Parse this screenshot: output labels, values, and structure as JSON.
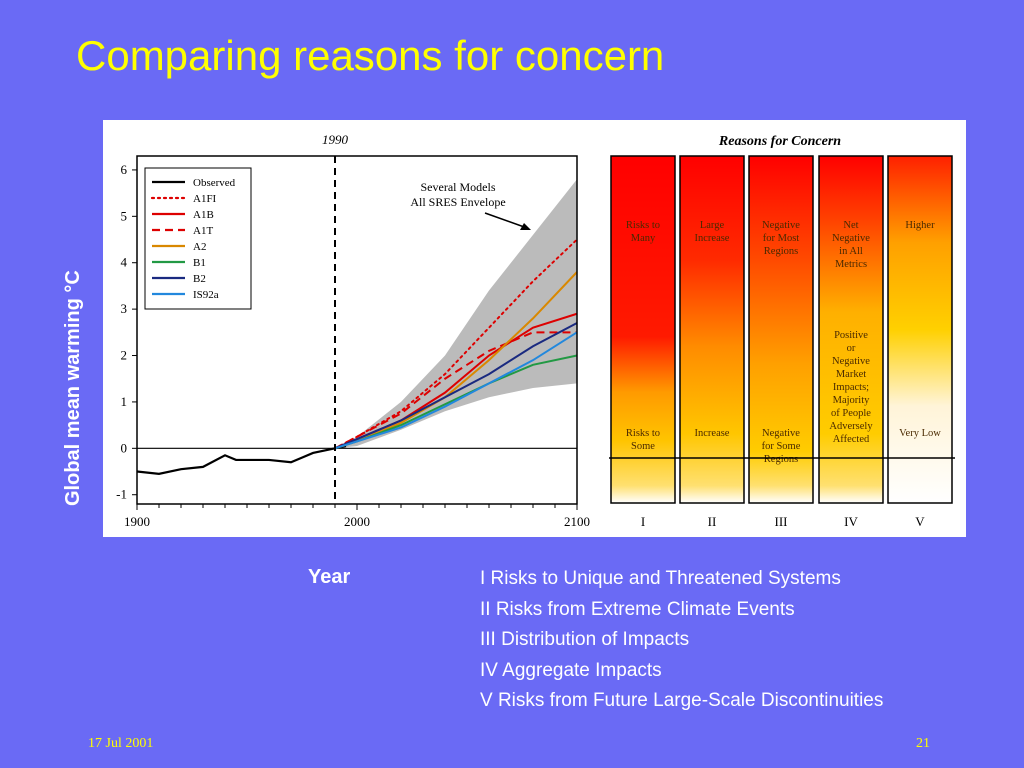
{
  "slide": {
    "title": "Comparing reasons for concern",
    "ylabel": "Global mean warming °C",
    "xlabel": "Year",
    "footer_date": "17 Jul 2001",
    "page_number": "21",
    "reasons_list": [
      "I   Risks to Unique and Threatened Systems",
      "II  Risks from Extreme Climate Events",
      "III Distribution of Impacts",
      "IV Aggregate Impacts",
      "V  Risks from Future Large-Scale Discontinuities"
    ]
  },
  "chart_data": [
    {
      "type": "line",
      "marker_label": "1990",
      "annotation": [
        "Several Models",
        "All SRES Envelope"
      ],
      "xlim": [
        1900,
        2100
      ],
      "ylim": [
        -1.2,
        6.3
      ],
      "x_ticks": [
        "1900",
        "2000",
        "2100"
      ],
      "y_ticks": [
        "-1",
        "0",
        "1",
        "2",
        "3",
        "4",
        "5",
        "6"
      ],
      "envelope": {
        "x": [
          1990,
          2000,
          2020,
          2040,
          2060,
          2080,
          2100
        ],
        "lower": [
          0,
          0.05,
          0.4,
          0.8,
          1.1,
          1.3,
          1.4
        ],
        "upper": [
          0,
          0.25,
          1.0,
          2.0,
          3.4,
          4.6,
          5.8
        ]
      },
      "series": [
        {
          "name": "Observed",
          "color": "#000000",
          "dash": "solid",
          "x": [
            1900,
            1910,
            1920,
            1930,
            1940,
            1945,
            1950,
            1960,
            1970,
            1975,
            1980,
            1990,
            1995
          ],
          "y": [
            -0.5,
            -0.55,
            -0.45,
            -0.4,
            -0.15,
            -0.25,
            -0.25,
            -0.25,
            -0.3,
            -0.2,
            -0.1,
            0.0,
            0.05
          ]
        },
        {
          "name": "A1FI",
          "color": "#dd0000",
          "dash": "dotted",
          "x": [
            1990,
            2000,
            2020,
            2040,
            2060,
            2080,
            2100
          ],
          "y": [
            0,
            0.25,
            0.8,
            1.6,
            2.6,
            3.6,
            4.5
          ]
        },
        {
          "name": "A1B",
          "color": "#dd0000",
          "dash": "solid",
          "x": [
            1990,
            2000,
            2020,
            2040,
            2060,
            2080,
            2100
          ],
          "y": [
            0,
            0.2,
            0.6,
            1.2,
            2.0,
            2.6,
            2.9
          ]
        },
        {
          "name": "A1T",
          "color": "#dd0000",
          "dash": "dashed",
          "x": [
            1990,
            2000,
            2020,
            2040,
            2060,
            2080,
            2100
          ],
          "y": [
            0,
            0.25,
            0.75,
            1.5,
            2.1,
            2.5,
            2.5
          ]
        },
        {
          "name": "A2",
          "color": "#d98800",
          "dash": "solid",
          "x": [
            1990,
            2000,
            2020,
            2040,
            2060,
            2080,
            2100
          ],
          "y": [
            0,
            0.15,
            0.55,
            1.1,
            1.9,
            2.8,
            3.8
          ]
        },
        {
          "name": "B1",
          "color": "#229944",
          "dash": "solid",
          "x": [
            1990,
            2000,
            2020,
            2040,
            2060,
            2080,
            2100
          ],
          "y": [
            0,
            0.15,
            0.5,
            0.95,
            1.4,
            1.8,
            2.0
          ]
        },
        {
          "name": "B2",
          "color": "#1a2a80",
          "dash": "solid",
          "x": [
            1990,
            2000,
            2020,
            2040,
            2060,
            2080,
            2100
          ],
          "y": [
            0,
            0.2,
            0.6,
            1.1,
            1.6,
            2.2,
            2.7
          ]
        },
        {
          "name": "IS92a",
          "color": "#2288dd",
          "dash": "solid",
          "x": [
            1990,
            2000,
            2020,
            2040,
            2060,
            2080,
            2100
          ],
          "y": [
            0,
            0.15,
            0.45,
            0.9,
            1.4,
            1.9,
            2.5
          ]
        }
      ]
    },
    {
      "type": "table",
      "title": "Reasons for Concern",
      "columns": [
        {
          "numeral": "I",
          "high": "Risks to Many",
          "mid": "",
          "low": "Risks to Some"
        },
        {
          "numeral": "II",
          "high": "Large Increase",
          "mid": "",
          "low": "Increase"
        },
        {
          "numeral": "III",
          "high": "Negative for Most Regions",
          "mid": "",
          "low": "Negative for Some Regions"
        },
        {
          "numeral": "IV",
          "high": "Net Negative in All Metrics",
          "mid": "Positive or Negative Market Impacts; Majority of People Adversely Affected",
          "low": ""
        },
        {
          "numeral": "V",
          "high": "Higher",
          "mid": "",
          "low": "Very Low"
        }
      ]
    }
  ]
}
